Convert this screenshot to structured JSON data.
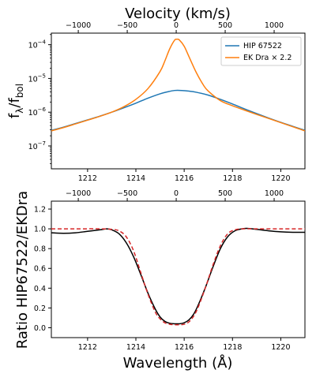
{
  "top_axis_label": "Velocity (km/s)",
  "velocity_ticks": [
    "−1000",
    "−500",
    "0",
    "500",
    "1000"
  ],
  "velocity_tick_values": [
    -1000,
    -500,
    0,
    500,
    1000
  ],
  "bottom_axis_label": "Wavelength (Å)",
  "wavelength_ticks": [
    "1212",
    "1214",
    "1216",
    "1218",
    "1220"
  ],
  "wavelength_tick_values": [
    1212,
    1214,
    1216,
    1218,
    1220
  ],
  "chart_data": [
    {
      "type": "line",
      "panel": "top",
      "ylabel": "fλ/fbol",
      "ylabel_main": "f",
      "ylabel_sub1": "λ",
      "ylabel_mid": "/f",
      "ylabel_sub2": "bol",
      "yscale": "log",
      "xlim": [
        1210.5,
        1221.0
      ],
      "ylim": [
        2.1e-08,
        0.00022
      ],
      "yticks": [
        {
          "value": 1e-07,
          "base": "10",
          "exp": "−7"
        },
        {
          "value": 1e-06,
          "base": "10",
          "exp": "−6"
        },
        {
          "value": 1e-05,
          "base": "10",
          "exp": "−5"
        },
        {
          "value": 0.0001,
          "base": "10",
          "exp": "−4"
        }
      ],
      "legend_position": "top-right",
      "series": [
        {
          "name": "HIP 67522",
          "color": "#1f77b4",
          "x": [
            1210.5,
            1211.0,
            1211.5,
            1212.0,
            1212.5,
            1213.0,
            1213.5,
            1214.0,
            1214.5,
            1215.0,
            1215.3,
            1215.6,
            1215.9,
            1216.2,
            1216.5,
            1217.0,
            1217.5,
            1218.0,
            1218.5,
            1219.0,
            1219.5,
            1220.0,
            1220.5,
            1221.0
          ],
          "y": [
            2.9e-07,
            3.6e-07,
            4.6e-07,
            5.9e-07,
            7.6e-07,
            1e-06,
            1.35e-06,
            1.85e-06,
            2.6e-06,
            3.5e-06,
            4e-06,
            4.4e-06,
            4.4e-06,
            4.2e-06,
            3.9e-06,
            3.2e-06,
            2.4e-06,
            1.75e-06,
            1.25e-06,
            9.1e-07,
            6.7e-07,
            5e-07,
            3.8e-07,
            2.9e-07
          ]
        },
        {
          "name": "EK Dra × 2.2",
          "color": "#ff7f0e",
          "x": [
            1210.5,
            1211.0,
            1211.5,
            1212.0,
            1212.5,
            1213.0,
            1213.5,
            1214.0,
            1214.5,
            1215.0,
            1215.2,
            1215.4,
            1215.6,
            1215.7,
            1215.8,
            1216.0,
            1216.2,
            1216.5,
            1216.8,
            1217.0,
            1217.5,
            1218.0,
            1218.5,
            1219.0,
            1219.5,
            1220.0,
            1220.5,
            1221.0
          ],
          "y": [
            2.8e-07,
            3.5e-07,
            4.5e-07,
            5.8e-07,
            7.5e-07,
            1e-06,
            1.45e-06,
            2.4e-06,
            5e-06,
            1.6e-05,
            3.3e-05,
            7.5e-05,
            0.000135,
            0.000145,
            0.000138,
            9e-05,
            4.4e-05,
            1.5e-05,
            6.3e-06,
            4.2e-06,
            2.2e-06,
            1.55e-06,
            1.15e-06,
            8.6e-07,
            6.5e-07,
            4.9e-07,
            3.7e-07,
            2.8e-07
          ]
        }
      ]
    },
    {
      "type": "line",
      "panel": "bottom",
      "ylabel": "Ratio HIP67522/EKDra",
      "xlabel": "Wavelength (Å)",
      "xlim": [
        1210.5,
        1221.0
      ],
      "ylim": [
        -0.1,
        1.28
      ],
      "yticks": [
        "0.0",
        "0.2",
        "0.4",
        "0.6",
        "0.8",
        "1.0",
        "1.2"
      ],
      "ytick_values": [
        0,
        0.2,
        0.4,
        0.6,
        0.8,
        1.0,
        1.2
      ],
      "series": [
        {
          "style": "solid",
          "color": "#000000",
          "x": [
            1210.5,
            1211.0,
            1211.5,
            1212.0,
            1212.5,
            1212.8,
            1213.0,
            1213.3,
            1213.6,
            1213.9,
            1214.2,
            1214.5,
            1214.8,
            1215.0,
            1215.2,
            1215.4,
            1215.6,
            1215.8,
            1216.0,
            1216.2,
            1216.4,
            1216.6,
            1216.9,
            1217.2,
            1217.5,
            1217.8,
            1218.1,
            1218.4,
            1218.6,
            1219.0,
            1219.5,
            1220.0,
            1220.5,
            1221.0
          ],
          "y": [
            0.96,
            0.955,
            0.96,
            0.975,
            0.99,
            1.0,
            0.99,
            0.95,
            0.86,
            0.72,
            0.54,
            0.35,
            0.19,
            0.11,
            0.065,
            0.045,
            0.04,
            0.04,
            0.05,
            0.08,
            0.14,
            0.24,
            0.42,
            0.62,
            0.8,
            0.92,
            0.98,
            1.0,
            1.005,
            0.995,
            0.98,
            0.97,
            0.965,
            0.965
          ]
        },
        {
          "style": "dashed",
          "color": "#d62728",
          "x": [
            1210.5,
            1211.5,
            1212.5,
            1213.0,
            1213.3,
            1213.6,
            1213.9,
            1214.2,
            1214.5,
            1214.8,
            1215.0,
            1215.2,
            1215.4,
            1215.6,
            1215.8,
            1216.0,
            1216.2,
            1216.4,
            1216.6,
            1216.9,
            1217.2,
            1217.5,
            1217.8,
            1218.1,
            1218.4,
            1219.0,
            1220.0,
            1221.0
          ],
          "y": [
            1.0,
            1.0,
            1.0,
            0.995,
            0.98,
            0.92,
            0.78,
            0.56,
            0.34,
            0.16,
            0.09,
            0.05,
            0.035,
            0.03,
            0.03,
            0.035,
            0.06,
            0.12,
            0.22,
            0.42,
            0.64,
            0.83,
            0.95,
            0.99,
            1.0,
            1.0,
            1.0,
            1.0
          ]
        }
      ]
    }
  ]
}
